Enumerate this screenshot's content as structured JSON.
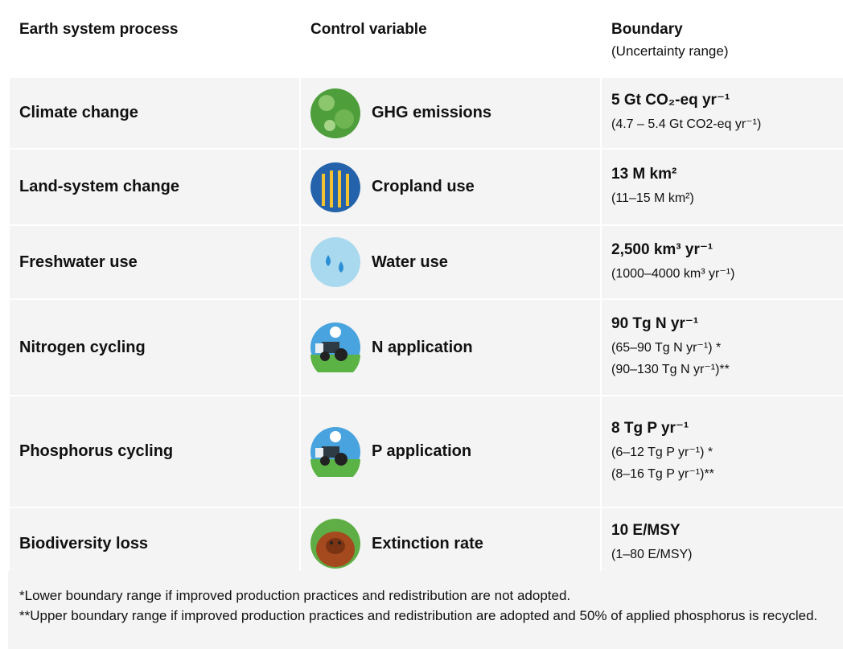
{
  "table": {
    "header": {
      "process": "Earth system process",
      "variable": "Control variable",
      "boundary": "Boundary",
      "uncertainty": "(Uncertainty range)"
    },
    "rows": [
      {
        "process": "Climate change",
        "variable": "GHG emissions",
        "boundary": "5 Gt CO₂-eq yr⁻¹",
        "ranges": [
          "(4.7 – 5.4 Gt CO2-eq yr⁻¹)"
        ]
      },
      {
        "process": "Land-system change",
        "variable": "Cropland use",
        "boundary": "13 M km²",
        "ranges": [
          "(11–15 M km²)"
        ]
      },
      {
        "process": "Freshwater use",
        "variable": "Water use",
        "boundary": "2,500 km³ yr⁻¹",
        "ranges": [
          "(1000–4000 km³ yr⁻¹)"
        ]
      },
      {
        "process": "Nitrogen cycling",
        "variable": "N application",
        "boundary": "90 Tg N yr⁻¹",
        "ranges": [
          "(65–90 Tg N yr⁻¹) *",
          "(90–130 Tg N yr⁻¹)**"
        ]
      },
      {
        "process": "Phosphorus cycling",
        "variable": "P application",
        "boundary": "8 Tg P yr⁻¹",
        "ranges": [
          "(6–12 Tg P yr⁻¹) *",
          "(8–16 Tg P yr⁻¹)**"
        ]
      },
      {
        "process": "Biodiversity loss",
        "variable": "Extinction rate",
        "boundary": "10 E/MSY",
        "ranges": [
          "(1–80 E/MSY)"
        ]
      }
    ]
  },
  "footnotes": [
    "*Lower boundary range if improved production practices and redistribution are not adopted.",
    "**Upper boundary range if improved production practices and redistribution are adopted and 50% of applied phosphorus is recycled."
  ]
}
